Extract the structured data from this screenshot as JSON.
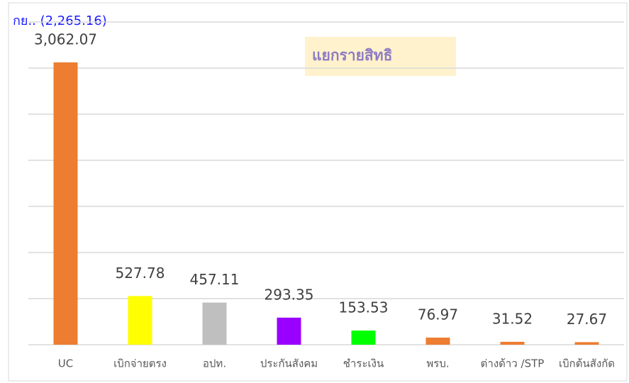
{
  "chart_data": {
    "type": "bar",
    "title": "กย.. (2,265.16)",
    "annotation": "แยกรายสิทธิ",
    "categories": [
      "UC",
      "เบิกจ่ายตรง",
      "อปท.",
      "ประกันสังคม",
      "ชำระเงิน",
      "พรบ.",
      "ต่างด้าว /STP",
      "เบิกต้นสังกัด"
    ],
    "values": [
      3062.07,
      527.78,
      457.11,
      293.35,
      153.53,
      76.97,
      31.52,
      27.67
    ],
    "value_labels": [
      "3,062.07",
      "527.78",
      "457.11",
      "293.35",
      "153.53",
      "76.97",
      "31.52",
      "27.67"
    ],
    "colors": [
      "#ed7d31",
      "#ffff00",
      "#bfbfbf",
      "#9900ff",
      "#00ff00",
      "#ed7d31",
      "#ed7d31",
      "#ed7d31"
    ],
    "ylim": [
      0,
      3500
    ],
    "yticks": [
      0,
      500,
      1000,
      1500,
      2000,
      2500,
      3000,
      3500
    ],
    "grid": true
  }
}
